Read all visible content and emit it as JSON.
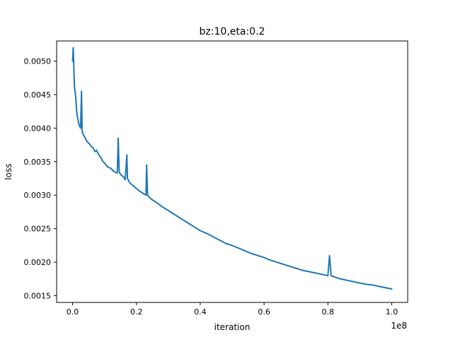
{
  "chart_data": {
    "type": "line",
    "title": "bz:10,eta:0.2",
    "xlabel": "iteration",
    "ylabel": "loss",
    "x_offset_label": "1e8",
    "xlim": [
      -0.05,
      1.05
    ],
    "ylim": [
      0.0014,
      0.0053
    ],
    "x_ticks": [
      0.0,
      0.2,
      0.4,
      0.6,
      0.8,
      1.0
    ],
    "x_tick_labels": [
      "0.0",
      "0.2",
      "0.4",
      "0.6",
      "0.8",
      "1.0"
    ],
    "y_ticks": [
      0.0015,
      0.002,
      0.0025,
      0.003,
      0.0035,
      0.004,
      0.0045,
      0.005
    ],
    "y_tick_labels": [
      "0.0015",
      "0.0020",
      "0.0025",
      "0.0030",
      "0.0035",
      "0.0040",
      "0.0045",
      "0.0050"
    ],
    "grid": false,
    "series": [
      {
        "color": "#1f77b4",
        "x": [
          0.0,
          0.002,
          0.004,
          0.006,
          0.008,
          0.01,
          0.012,
          0.014,
          0.016,
          0.018,
          0.02,
          0.025,
          0.028,
          0.03,
          0.032,
          0.035,
          0.04,
          0.045,
          0.05,
          0.055,
          0.06,
          0.065,
          0.07,
          0.075,
          0.08,
          0.09,
          0.095,
          0.1,
          0.11,
          0.12,
          0.13,
          0.14,
          0.143,
          0.146,
          0.15,
          0.16,
          0.165,
          0.17,
          0.172,
          0.175,
          0.18,
          0.19,
          0.2,
          0.21,
          0.22,
          0.23,
          0.232,
          0.235,
          0.24,
          0.25,
          0.26,
          0.28,
          0.3,
          0.32,
          0.34,
          0.36,
          0.38,
          0.4,
          0.42,
          0.44,
          0.46,
          0.48,
          0.5,
          0.52,
          0.54,
          0.56,
          0.58,
          0.6,
          0.62,
          0.64,
          0.66,
          0.68,
          0.7,
          0.72,
          0.74,
          0.76,
          0.78,
          0.8,
          0.805,
          0.81,
          0.82,
          0.84,
          0.86,
          0.88,
          0.9,
          0.92,
          0.94,
          0.96,
          0.98,
          1.0
        ],
        "y": [
          0.005,
          0.0052,
          0.0049,
          0.0046,
          0.00455,
          0.00445,
          0.0043,
          0.0042,
          0.00415,
          0.0041,
          0.00405,
          0.004,
          0.00455,
          0.00395,
          0.00392,
          0.00389,
          0.00385,
          0.0038,
          0.00378,
          0.00375,
          0.00372,
          0.0037,
          0.00365,
          0.00367,
          0.00362,
          0.00355,
          0.0035,
          0.00348,
          0.00342,
          0.0034,
          0.00335,
          0.00333,
          0.00385,
          0.00335,
          0.00331,
          0.00327,
          0.00323,
          0.0036,
          0.00325,
          0.00322,
          0.00318,
          0.00314,
          0.0031,
          0.00306,
          0.00303,
          0.003,
          0.00345,
          0.003,
          0.00297,
          0.00293,
          0.0029,
          0.00283,
          0.00277,
          0.00271,
          0.00265,
          0.00259,
          0.00253,
          0.00247,
          0.00243,
          0.00238,
          0.00233,
          0.00228,
          0.00225,
          0.00221,
          0.00217,
          0.00213,
          0.0021,
          0.00207,
          0.00203,
          0.002,
          0.00197,
          0.00194,
          0.00191,
          0.00188,
          0.00186,
          0.00184,
          0.00182,
          0.0018,
          0.0021,
          0.0018,
          0.00178,
          0.00175,
          0.00173,
          0.00171,
          0.00169,
          0.00167,
          0.00166,
          0.00164,
          0.00162,
          0.0016
        ]
      }
    ]
  }
}
